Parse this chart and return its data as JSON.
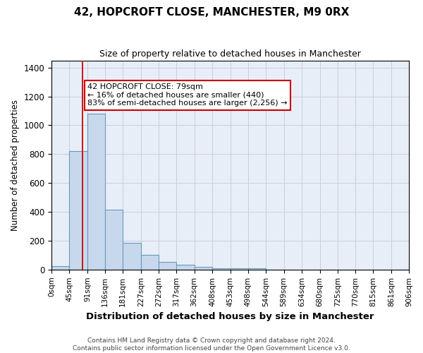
{
  "title1": "42, HOPCROFT CLOSE, MANCHESTER, M9 0RX",
  "title2": "Size of property relative to detached houses in Manchester",
  "xlabel": "Distribution of detached houses by size in Manchester",
  "ylabel": "Number of detached properties",
  "bin_edges": [
    0,
    45,
    91,
    136,
    181,
    227,
    272,
    317,
    362,
    408,
    453,
    498,
    544,
    589,
    634,
    680,
    725,
    770,
    815,
    861,
    906
  ],
  "bar_heights": [
    25,
    820,
    1080,
    415,
    185,
    100,
    55,
    35,
    20,
    10,
    10,
    10,
    0,
    0,
    0,
    0,
    0,
    0,
    0,
    0
  ],
  "bar_color": "#c8d8ec",
  "bar_edge_color": "#6699bb",
  "grid_color": "#c8d0dc",
  "background_color": "#e8eef8",
  "red_line_x": 79,
  "annotation_line1": "42 HOPCROFT CLOSE: 79sqm",
  "annotation_line2": "← 16% of detached houses are smaller (440)",
  "annotation_line3": "83% of semi-detached houses are larger (2,256) →",
  "annotation_box_color": "#ffffff",
  "annotation_border_color": "#cc0000",
  "ylim": [
    0,
    1450
  ],
  "yticks": [
    0,
    200,
    400,
    600,
    800,
    1000,
    1200,
    1400
  ],
  "footer1": "Contains HM Land Registry data © Crown copyright and database right 2024.",
  "footer2": "Contains public sector information licensed under the Open Government Licence v3.0."
}
